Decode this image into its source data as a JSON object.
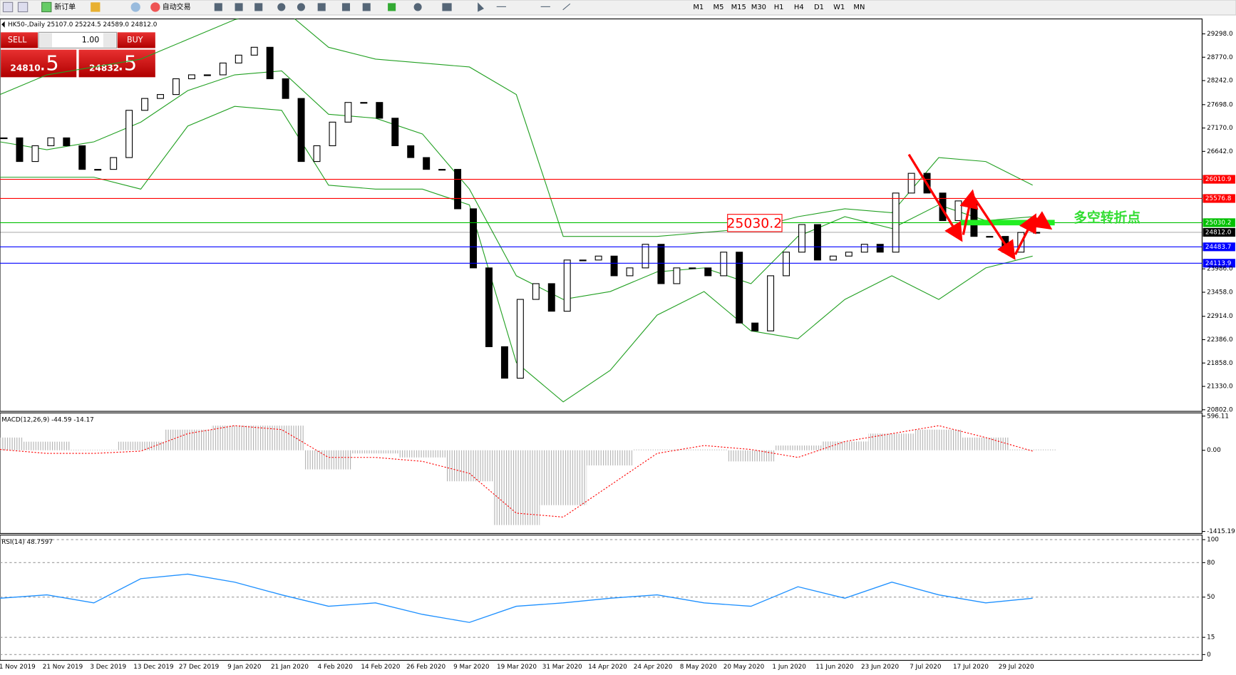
{
  "toolbar": {
    "new_order": "新订单",
    "auto_trading": "自动交易",
    "timeframes": [
      "M1",
      "M5",
      "M15",
      "M30",
      "H1",
      "H4",
      "D1",
      "W1",
      "MN"
    ]
  },
  "trade_panel": {
    "sell": "SELL",
    "buy": "BUY",
    "lots": "1.00",
    "sell_price_main": "24810",
    "sell_price_tail": ".5",
    "buy_price_main": "24832",
    "buy_price_tail": ".5"
  },
  "x_labels": [
    "1 Nov 2019",
    "21 Nov 2019",
    "3 Dec 2019",
    "13 Dec 2019",
    "27 Dec 2019",
    "9 Jan 2020",
    "21 Jan 2020",
    "4 Feb 2020",
    "14 Feb 2020",
    "26 Feb 2020",
    "9 Mar 2020",
    "19 Mar 2020",
    "31 Mar 2020",
    "14 Apr 2020",
    "24 Apr 2020",
    "8 May 2020",
    "20 May 2020",
    "1 Jun 2020",
    "11 Jun 2020",
    "23 Jun 2020",
    "7 Jul 2020",
    "17 Jul 2020",
    "29 Jul 2020"
  ],
  "chart_data": [
    {
      "type": "candlestick",
      "title": "HK50-,Daily 25107.0 25224.5 24589.0 24812.0",
      "values": [
        26947,
        26413,
        26769,
        26947,
        26769,
        26235,
        26235,
        26502,
        27570,
        27838,
        27927,
        28283,
        28372,
        28372,
        28639,
        28817,
        28995,
        28283,
        27838,
        26413,
        26769,
        27303,
        27748,
        27748,
        27392,
        26769,
        26502,
        26235,
        26235,
        25344,
        24008,
        22227,
        21515,
        23296,
        23652,
        23029,
        24186,
        24186,
        24275,
        23830,
        24008,
        24542,
        23652,
        24008,
        24008,
        23830,
        24364,
        22762,
        22584,
        23830,
        24364,
        24988,
        24186,
        24275,
        24364,
        24542,
        24364,
        25700,
        26146,
        25700,
        25077,
        25522,
        24720,
        24720,
        24364,
        24809,
        24812
      ],
      "up_color": "#ffffff",
      "down_color": "#000000",
      "band_color": "#22a022",
      "bands": {
        "upper": [
          27927,
          28372,
          28550,
          28728,
          29173,
          29618,
          29885,
          28995,
          28728,
          28639,
          28550,
          27927,
          24720,
          24720,
          24720,
          24809,
          24898,
          25166,
          25344,
          25255,
          26502,
          26413,
          25878
        ],
        "middle": [
          26858,
          26680,
          26858,
          27303,
          28016,
          28372,
          28461,
          27481,
          27392,
          27036,
          25789,
          23830,
          23296,
          23474,
          23919,
          24008,
          23652,
          24720,
          25166,
          24898,
          25433,
          25077,
          25166
        ],
        "lower": [
          26057,
          26057,
          26057,
          25789,
          27214,
          27659,
          27570,
          25878,
          25789,
          25789,
          25433,
          21871,
          20980,
          21693,
          22940,
          23474,
          22584,
          22406,
          23296,
          23830,
          23296,
          24008,
          24275
        ]
      },
      "ylim": [
        20766,
        29636
      ],
      "yticks": [
        {
          "value": 29298,
          "label": "29298.0"
        },
        {
          "value": 28770,
          "label": "28770.0"
        },
        {
          "value": 28242,
          "label": "28242.0"
        },
        {
          "value": 27698,
          "label": "27698.0"
        },
        {
          "value": 27170,
          "label": "27170.0"
        },
        {
          "value": 26642,
          "label": "26642.0"
        },
        {
          "value": 23986,
          "label": "23986.0"
        },
        {
          "value": 23458,
          "label": "23458.0"
        },
        {
          "value": 22914,
          "label": "22914.0"
        },
        {
          "value": 22386,
          "label": "22386.0"
        },
        {
          "value": 21858,
          "label": "21858.0"
        },
        {
          "value": 21330,
          "label": "21330.0"
        },
        {
          "value": 20802,
          "label": "20802.0"
        }
      ],
      "levels": [
        {
          "value": 26010.9,
          "color": "#ff0000"
        },
        {
          "value": 25576.8,
          "color": "#ff0000"
        },
        {
          "value": 25030.2,
          "color": "#00c000"
        },
        {
          "value": 24812,
          "label": "24812.0",
          "color": "#000000"
        },
        {
          "value": 24483.7,
          "color": "#0000ff"
        },
        {
          "value": 24113.9,
          "color": "#0000ff"
        }
      ],
      "annotations": {
        "price_box": "25030.2",
        "turning_point": "多空转折点"
      }
    },
    {
      "type": "macd",
      "title": "MACD(12,26,9) -44.59 -14.17",
      "values": [
        222,
        150,
        10,
        150,
        360,
        430,
        430,
        -333,
        -55,
        -125,
        -541,
        -1304,
        -957,
        -264,
        14,
        14,
        -194,
        83,
        153,
        291,
        360,
        222,
        14
      ],
      "signal": [
        14,
        -55,
        -55,
        -14,
        291,
        430,
        360,
        -125,
        -125,
        -194,
        -402,
        -1096,
        -1165,
        -610,
        -55,
        83,
        14,
        -125,
        153,
        291,
        430,
        222,
        -14
      ],
      "color": "#b0b0b0",
      "signal_color": "#ff0000",
      "ylim": [
        -1451,
        652
      ],
      "yticks": [
        596.11,
        {
          "value": 0,
          "label": "0.00"
        },
        -1415.19
      ]
    },
    {
      "type": "line",
      "title": "RSI(14) 48.7597",
      "values": [
        49,
        52,
        45,
        66,
        70,
        63,
        52,
        42,
        45,
        35,
        28,
        42,
        45,
        49,
        52,
        45,
        42,
        59,
        49,
        63,
        52,
        45,
        49
      ],
      "color": "#1e90ff",
      "ylim": [
        -5,
        104
      ],
      "yticks": [
        100,
        80,
        50,
        15,
        0
      ]
    }
  ]
}
